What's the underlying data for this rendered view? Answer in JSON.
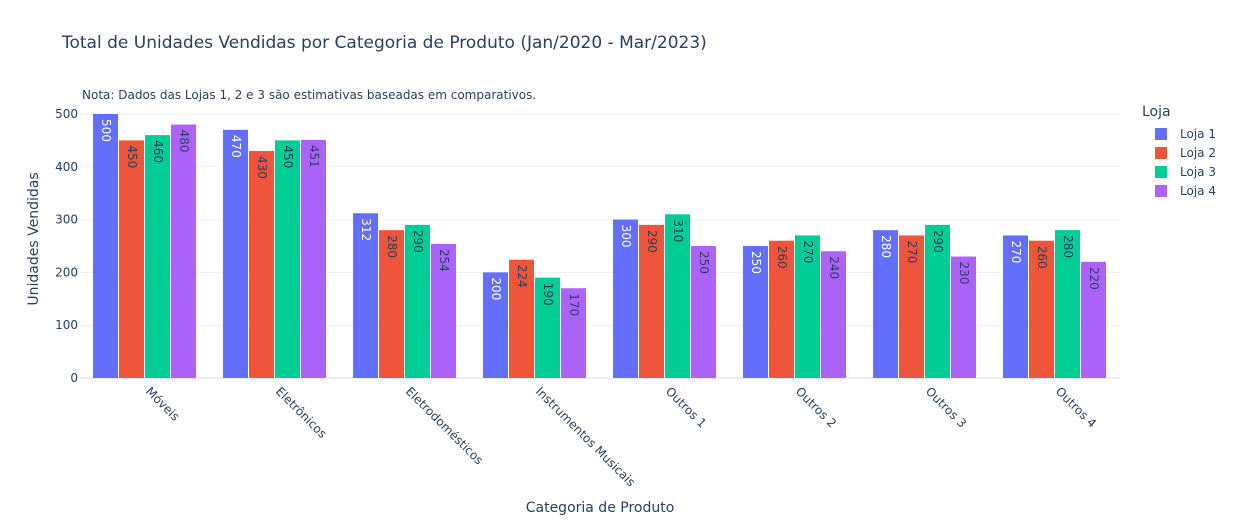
{
  "chart_data": {
    "type": "bar",
    "title": "Total de Unidades Vendidas por Categoria de Produto (Jan/2020 - Mar/2023)",
    "annotation": "Nota: Dados das Lojas 1, 2 e 3 são estimativas baseadas em comparativos.",
    "xlabel": "Categoria de Produto",
    "ylabel": "Unidades Vendidas",
    "ylim": [
      0,
      500
    ],
    "yticks": [
      0,
      100,
      200,
      300,
      400,
      500
    ],
    "legend_title": "Loja",
    "legend_position": "right",
    "categories": [
      "Móveis",
      "Eletrônicos",
      "Eletrodomésticos",
      "Instrumentos Musicais",
      "Outros 1",
      "Outros 2",
      "Outros 3",
      "Outros 4"
    ],
    "series": [
      {
        "name": "Loja 1",
        "color": "#636efa",
        "values": [
          500,
          470,
          312,
          200,
          300,
          250,
          280,
          270
        ]
      },
      {
        "name": "Loja 2",
        "color": "#EF553B",
        "values": [
          450,
          430,
          280,
          224,
          290,
          260,
          270,
          260
        ]
      },
      {
        "name": "Loja 3",
        "color": "#00cc96",
        "values": [
          460,
          450,
          290,
          190,
          310,
          270,
          290,
          280
        ]
      },
      {
        "name": "Loja 4",
        "color": "#ab63fa",
        "values": [
          480,
          451,
          254,
          170,
          250,
          240,
          230,
          220
        ]
      }
    ]
  }
}
